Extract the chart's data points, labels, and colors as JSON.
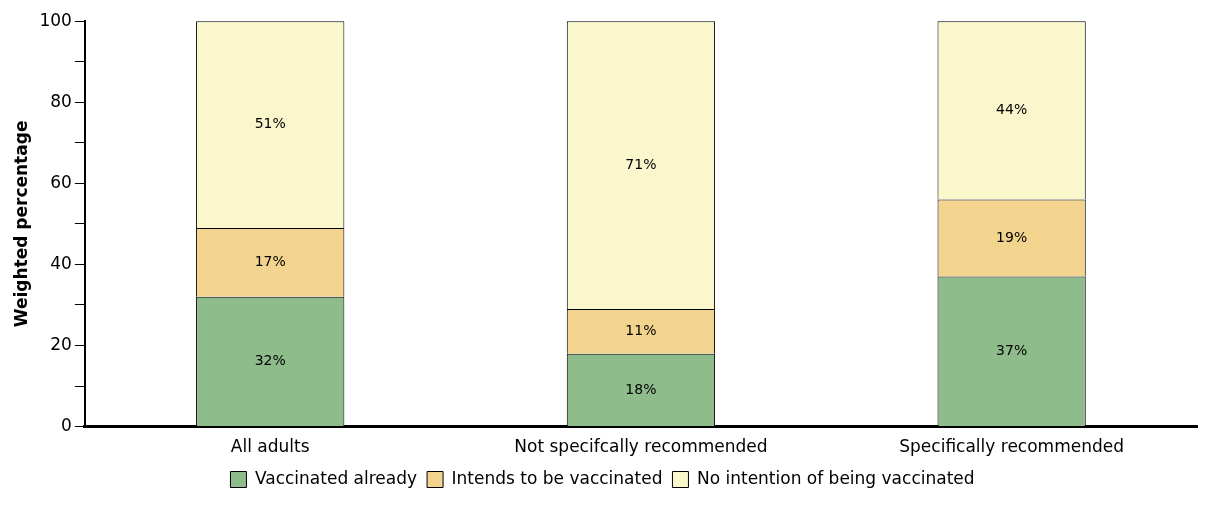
{
  "chart_data": {
    "type": "bar",
    "stacked": true,
    "ylabel": "Weighted percentage",
    "categories": [
      "All adults",
      "Not specifcally recommended",
      "Specifically recommended"
    ],
    "series": [
      {
        "name": "Vaccinated already",
        "color": "#8fbc8b",
        "values": [
          32,
          18,
          37
        ],
        "value_labels": [
          "32%",
          "18%",
          "37%"
        ]
      },
      {
        "name": "Intends to be vaccinated",
        "color": "#f3d48e",
        "values": [
          17,
          11,
          19
        ],
        "value_labels": [
          "17%",
          "11%",
          "19%"
        ]
      },
      {
        "name": "No intention of being vaccinated",
        "color": "#faf7cc",
        "values": [
          51,
          71,
          44
        ],
        "value_labels": [
          "51%",
          "71%",
          "44%"
        ]
      }
    ],
    "ylim": [
      0,
      100
    ],
    "yticks": [
      0,
      {
        "value": 10,
        "label": null
      },
      20,
      {
        "value": 30,
        "label": null
      },
      40,
      {
        "value": 50,
        "label": null
      },
      60,
      {
        "value": 70,
        "label": null
      },
      80,
      {
        "value": 90,
        "label": null
      },
      100
    ],
    "grid": false,
    "legend": "bottom"
  }
}
